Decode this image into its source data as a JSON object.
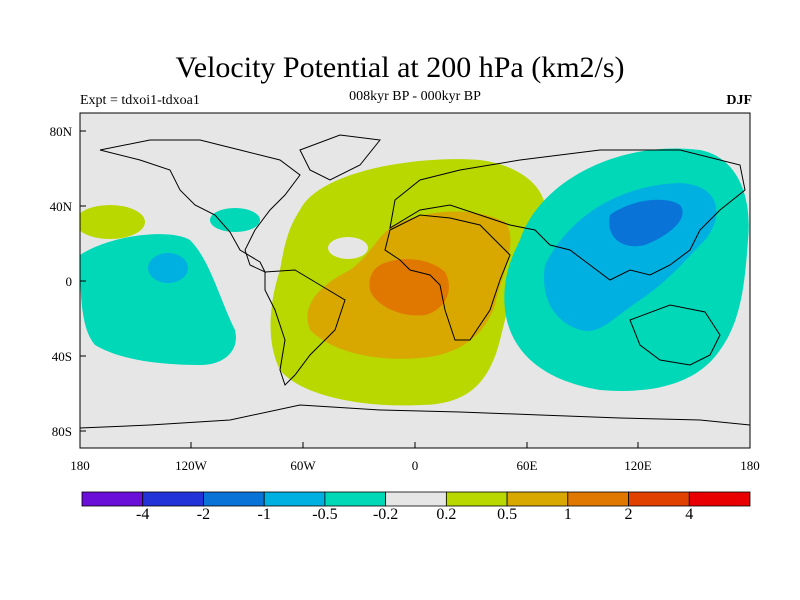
{
  "title": "Velocity Potential at 200 hPa (km2/s)",
  "subtitle": "008kyr BP - 000kyr BP",
  "experiment": "Expt = tdxoi1-tdxoa1",
  "season": "DJF",
  "lat_labels": [
    "80N",
    "40N",
    "0",
    "40S",
    "80S"
  ],
  "lon_labels": [
    "180",
    "120W",
    "60W",
    "0",
    "60E",
    "120E",
    "180"
  ],
  "colorbar": {
    "labels": [
      "-4",
      "-2",
      "-1",
      "-0.5",
      "-0.2",
      "0.2",
      "0.5",
      "1",
      "2",
      "4"
    ],
    "colors": [
      "#6a0fd8",
      "#2233d8",
      "#0a73d8",
      "#00b0e0",
      "#00d8b8",
      "#e6e6e6",
      "#b8d800",
      "#d8a800",
      "#e07800",
      "#e04000",
      "#e80000"
    ]
  },
  "colors": {
    "neutral": "#e6e6e6",
    "pos_0_2": "#b8d800",
    "pos_0_5": "#d8a800",
    "pos_1": "#e07800",
    "neg_0_2": "#00d8b8",
    "neg_0_5": "#00b0e0",
    "neg_1": "#0a73d8"
  }
}
